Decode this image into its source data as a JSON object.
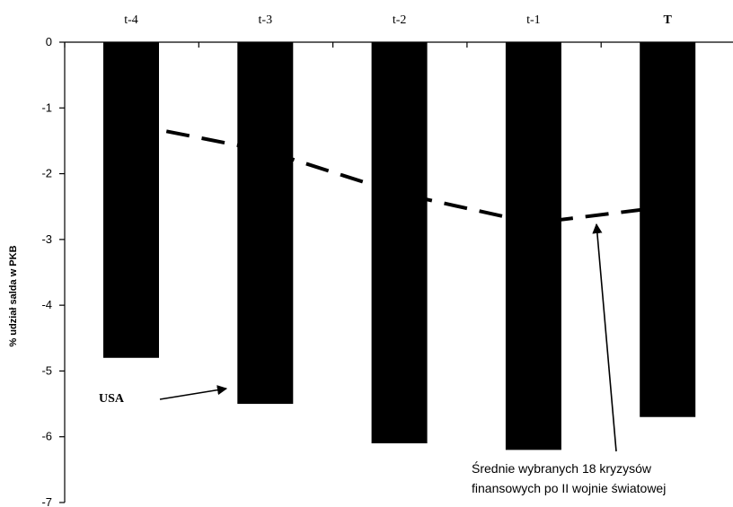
{
  "chart_data": {
    "type": "bar",
    "categories": [
      "t-4",
      "t-3",
      "t-2",
      "t-1",
      "T"
    ],
    "series": [
      {
        "name": "USA",
        "type": "bar",
        "color": "#000000",
        "values": [
          -4.8,
          -5.5,
          -6.1,
          -6.2,
          -5.7
        ]
      },
      {
        "name": "Średnie wybranych 18 kryzysów finansowych po II wojnie światowej",
        "type": "line",
        "style": "dashed",
        "color": "#000000",
        "values": [
          -1.25,
          -1.65,
          -2.3,
          -2.75,
          -2.5
        ]
      }
    ],
    "ylabel": "% udział salda w PKB",
    "xlabel": "",
    "ylim": [
      -7,
      0
    ],
    "yticks": [
      0,
      -1,
      -2,
      -3,
      -4,
      -5,
      -6,
      -7
    ],
    "x_axis_position": "top",
    "grid": false,
    "annotations": {
      "usa": "USA",
      "average_line1": "Średnie wybranych 18 kryzysów",
      "average_line2": "finansowych po II wojnie światowej"
    }
  }
}
